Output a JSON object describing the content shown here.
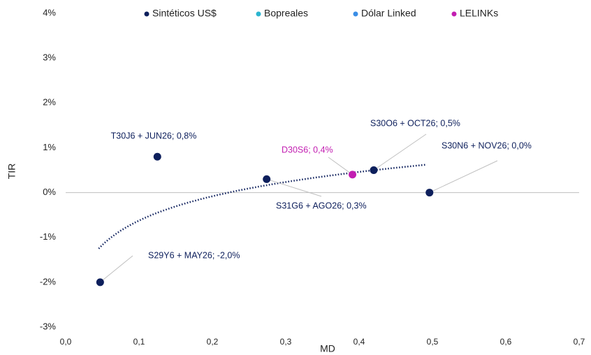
{
  "chart_data": {
    "type": "scatter",
    "x_label": "MD",
    "y_label": "TIR",
    "xlim": [
      0,
      0.7
    ],
    "xticks": [
      {
        "value": 0,
        "label": "0,0"
      },
      {
        "value": 0.1,
        "label": "0,1"
      },
      {
        "value": 0.2,
        "label": "0,2"
      },
      {
        "value": 0.3,
        "label": "0,3"
      },
      {
        "value": 0.4,
        "label": "0,4"
      },
      {
        "value": 0.5,
        "label": "0,5"
      },
      {
        "value": 0.6,
        "label": "0,6"
      },
      {
        "value": 0.7,
        "label": "0,7"
      }
    ],
    "ylim": [
      -3,
      4
    ],
    "yticks": [
      {
        "value": -3,
        "label": "-3%"
      },
      {
        "value": -2,
        "label": "-2%"
      },
      {
        "value": -1,
        "label": "-1%"
      },
      {
        "value": 0,
        "label": "0%"
      },
      {
        "value": 1,
        "label": "1%"
      },
      {
        "value": 2,
        "label": "2%"
      },
      {
        "value": 3,
        "label": "3%"
      },
      {
        "value": 4,
        "label": "4%"
      }
    ],
    "zero_line": true,
    "legend": "top",
    "series": [
      {
        "name": "Sintéticos US$",
        "color": "#0d1f5c",
        "x": [
          0.047,
          0.125,
          0.274,
          0.42,
          0.496
        ],
        "values": [
          -2.0,
          0.8,
          0.3,
          0.5,
          0.0
        ],
        "point_labels": [
          "S29Y6 + MAY26; -2,0%",
          "T30J6 + JUN26; 0,8%",
          "S31G6 + AGO26; 0,3%",
          "S30O6 + OCT26; 0,5%",
          "S30N6 + NOV26; 0,0%"
        ]
      },
      {
        "name": "Bopreales",
        "color": "#2bb5d0",
        "x": [],
        "values": [],
        "point_labels": []
      },
      {
        "name": "Dólar Linked",
        "color": "#3a8ee6",
        "x": [],
        "values": [],
        "point_labels": []
      },
      {
        "name": "LELINKs",
        "color": "#c21eb1",
        "x": [
          0.391
        ],
        "values": [
          0.4
        ],
        "point_labels": [
          "D30S6; 0,4%"
        ]
      }
    ],
    "trendline": {
      "kind": "logarithmic",
      "color": "#0d1f5c",
      "a": 0.783,
      "b": 1.178,
      "x_range": [
        0.045,
        0.49
      ]
    }
  }
}
